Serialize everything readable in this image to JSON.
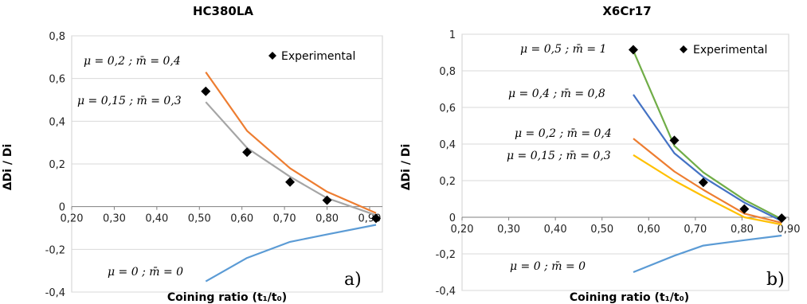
{
  "chart_data": [
    {
      "id": "a",
      "type": "line",
      "title": "HC380LA",
      "xlabel": "Coining ratio (t₁/t₀)",
      "ylabel": "ΔDi / Di",
      "xlim": [
        0.2,
        0.93
      ],
      "ylim": [
        -0.4,
        0.8
      ],
      "xticks": [
        "0,20",
        "0,30",
        "0,40",
        "0,50",
        "0,60",
        "0,70",
        "0,80",
        "0,90"
      ],
      "xtick_values": [
        0.2,
        0.3,
        0.4,
        0.5,
        0.6,
        0.7,
        0.8,
        0.9
      ],
      "yticks": [
        "-0,4",
        "-0,2",
        "0",
        "0,2",
        "0,4",
        "0,6",
        "0,8"
      ],
      "ytick_values": [
        -0.4,
        -0.2,
        0,
        0.2,
        0.4,
        0.6,
        0.8
      ],
      "grid": "horizontal",
      "corner_label": "a)",
      "legend": {
        "label": "Experimental",
        "marker": "diamond",
        "position": "top-right"
      },
      "experimental": {
        "x": [
          0.515,
          0.612,
          0.713,
          0.8,
          0.915
        ],
        "y": [
          0.54,
          0.255,
          0.115,
          0.03,
          -0.055
        ]
      },
      "series": [
        {
          "label": "μ = 0 ; m̄ = 0",
          "color": "#5b9bd5",
          "x": [
            0.515,
            0.612,
            0.713,
            0.8,
            0.915
          ],
          "y": [
            -0.35,
            -0.24,
            -0.165,
            -0.13,
            -0.085
          ]
        },
        {
          "label": "μ = 0,15 ; m̄ = 0,3",
          "color": "#a5a5a5",
          "x": [
            0.515,
            0.612,
            0.713,
            0.8,
            0.915
          ],
          "y": [
            0.49,
            0.275,
            0.14,
            0.04,
            -0.04
          ]
        },
        {
          "label": "μ = 0,2 ; m̄ = 0,4",
          "color": "#ed7d31",
          "x": [
            0.515,
            0.612,
            0.713,
            0.8,
            0.915
          ],
          "y": [
            0.63,
            0.355,
            0.18,
            0.07,
            -0.03
          ]
        }
      ]
    },
    {
      "id": "b",
      "type": "line",
      "title": "X6Cr17",
      "xlabel": "Coining ratio (t₁/t₀)",
      "ylabel": "ΔDi / Di",
      "xlim": [
        0.2,
        0.9
      ],
      "ylim": [
        -0.4,
        1.0
      ],
      "xticks": [
        "0,20",
        "0,30",
        "0,40",
        "0,50",
        "0,60",
        "0,70",
        "0,80",
        "0,90"
      ],
      "xtick_values": [
        0.2,
        0.3,
        0.4,
        0.5,
        0.6,
        0.7,
        0.8,
        0.9
      ],
      "yticks": [
        "-0,4",
        "-0,2",
        "0",
        "0,2",
        "0,4",
        "0,6",
        "0,8",
        "1"
      ],
      "ytick_values": [
        -0.4,
        -0.2,
        0,
        0.2,
        0.4,
        0.6,
        0.8,
        1.0
      ],
      "grid": "horizontal",
      "corner_label": "b)",
      "legend": {
        "label": "Experimental",
        "marker": "diamond",
        "position": "top-right"
      },
      "experimental": {
        "x": [
          0.567,
          0.655,
          0.717,
          0.805,
          0.885
        ],
        "y": [
          0.915,
          0.42,
          0.19,
          0.045,
          -0.005
        ]
      },
      "series": [
        {
          "label": "μ = 0 ; m̄ = 0",
          "color": "#5b9bd5",
          "x": [
            0.567,
            0.655,
            0.717,
            0.805,
            0.885
          ],
          "y": [
            -0.3,
            -0.21,
            -0.155,
            -0.125,
            -0.1
          ]
        },
        {
          "label": "μ = 0,15 ; m̄ = 0,3",
          "color": "#ffc000",
          "x": [
            0.567,
            0.655,
            0.717,
            0.805,
            0.885
          ],
          "y": [
            0.34,
            0.2,
            0.115,
            0.0,
            -0.04
          ]
        },
        {
          "label": "μ = 0,2 ; m̄ = 0,4",
          "color": "#ed7d31",
          "x": [
            0.567,
            0.655,
            0.717,
            0.805,
            0.885
          ],
          "y": [
            0.43,
            0.25,
            0.15,
            0.02,
            -0.03
          ]
        },
        {
          "label": "μ = 0,4 ; m̄ = 0,8",
          "color": "#4472c4",
          "x": [
            0.567,
            0.655,
            0.717,
            0.805,
            0.885
          ],
          "y": [
            0.67,
            0.35,
            0.22,
            0.08,
            -0.02
          ]
        },
        {
          "label": "μ = 0,5 ; m̄ = 1",
          "color": "#70ad47",
          "x": [
            0.567,
            0.655,
            0.717,
            0.805,
            0.885
          ],
          "y": [
            0.91,
            0.39,
            0.245,
            0.095,
            -0.01
          ]
        }
      ]
    }
  ]
}
